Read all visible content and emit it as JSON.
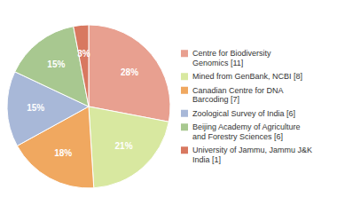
{
  "chart_data": {
    "type": "pie",
    "categories": [
      "Centre for Biodiversity\nGenomics [11]",
      "Mined from GenBank, NCBI [8]",
      "Canadian Centre for DNA\nBarcoding [7]",
      "Zoological Survey of India [6]",
      "Beijing Academy of Agriculture\nand Forestry Sciences [6]",
      "University of Jammu, Jammu J&K\nIndia [1]"
    ],
    "values": [
      28,
      21,
      18,
      15,
      15,
      3
    ],
    "value_labels": [
      "28%",
      "21%",
      "18%",
      "15%",
      "15%",
      "3%"
    ],
    "colors": [
      "#e8a090",
      "#d8e8a0",
      "#f0a860",
      "#a8b8d8",
      "#a8c890",
      "#d87860"
    ],
    "data_labels": true,
    "legend": "right"
  }
}
